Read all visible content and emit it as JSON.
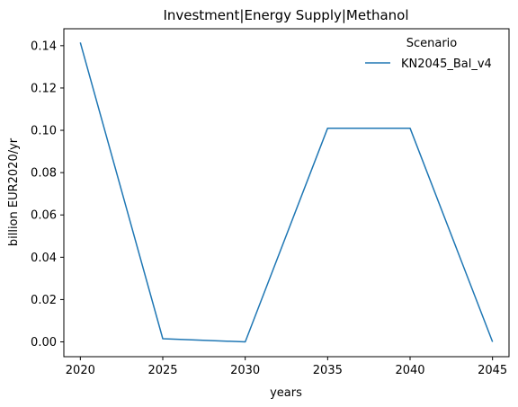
{
  "chart_data": {
    "type": "line",
    "title": "Investment|Energy Supply|Methanol",
    "xlabel": "years",
    "ylabel": "billion EUR2020/yr",
    "x": [
      2020,
      2025,
      2030,
      2035,
      2040,
      2045
    ],
    "xlim": [
      2019,
      2046
    ],
    "ylim": [
      -0.007,
      0.148
    ],
    "xticks": [
      2020,
      2025,
      2030,
      2035,
      2040,
      2045
    ],
    "yticks": [
      0.0,
      0.02,
      0.04,
      0.06,
      0.08,
      0.1,
      0.12,
      0.14
    ],
    "ytick_labels": [
      "0.00",
      "0.02",
      "0.04",
      "0.06",
      "0.08",
      "0.10",
      "0.12",
      "0.14"
    ],
    "grid": false,
    "legend": {
      "title": "Scenario",
      "placement": "top-right"
    },
    "series": [
      {
        "name": "KN2045_Bal_v4",
        "color": "#1f77b4",
        "values": [
          0.1415,
          0.0015,
          0.0,
          0.101,
          0.101,
          0.0
        ]
      }
    ]
  }
}
